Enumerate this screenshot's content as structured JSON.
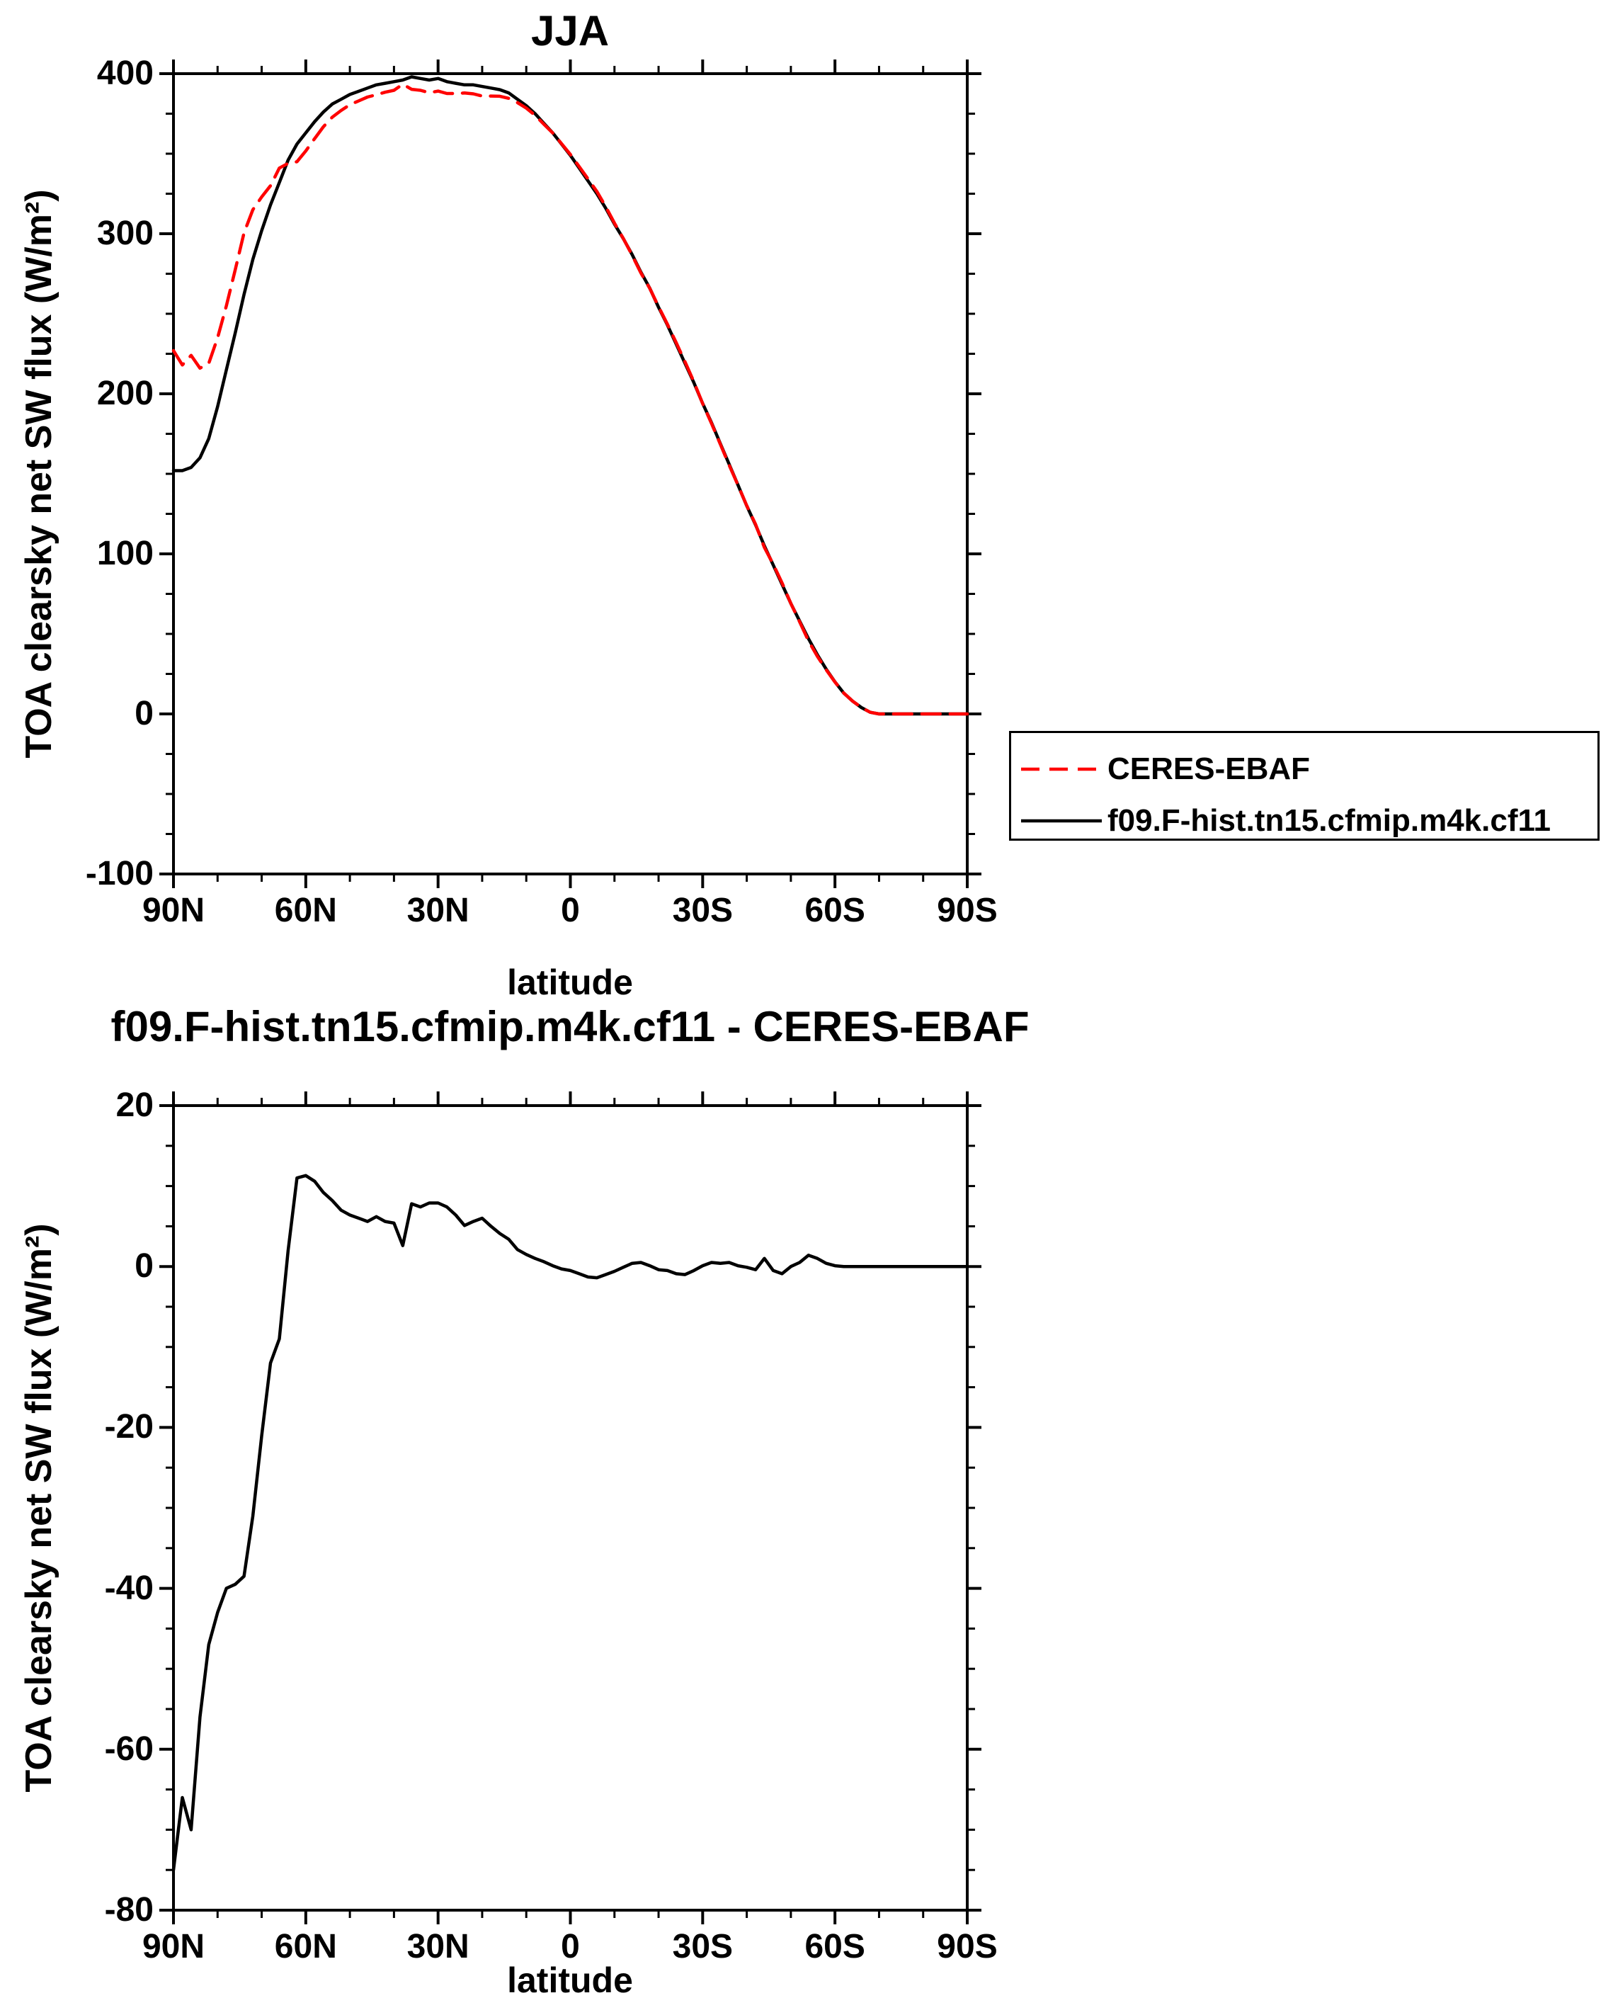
{
  "page": {
    "background": "#ffffff",
    "frame_color": "#000000"
  },
  "legend": {
    "items": [
      {
        "label": "CERES-EBAF",
        "color": "#ff0000",
        "style": "dashed"
      },
      {
        "label": "f09.F-hist.tn15.cfmip.m4k.cf11",
        "color": "#000000",
        "style": "solid"
      }
    ]
  },
  "chart_data": [
    {
      "type": "line",
      "title": "JJA",
      "xlabel": "latitude",
      "ylabel": "TOA clearsky net SW flux (W/m²)",
      "xlim_deg": [
        90,
        -90
      ],
      "ylim": [
        -100,
        400
      ],
      "grid": false,
      "legend_position": "outside-right-lower",
      "xticks": {
        "values": [
          90,
          60,
          30,
          0,
          -30,
          -60,
          -90
        ],
        "labels": [
          "90N",
          "60N",
          "30N",
          "0",
          "30S",
          "60S",
          "90S"
        ]
      },
      "yticks": {
        "values": [
          400,
          300,
          200,
          100,
          0,
          -100
        ],
        "labels": [
          "400",
          "300",
          "200",
          "100",
          "0",
          "-100"
        ]
      },
      "x": [
        90,
        88,
        86,
        84,
        82,
        80,
        78,
        76,
        74,
        72,
        70,
        68,
        66,
        64,
        62,
        60,
        58,
        56,
        54,
        52,
        50,
        48,
        46,
        44,
        42,
        40,
        38,
        36,
        34,
        32,
        30,
        28,
        26,
        24,
        22,
        20,
        18,
        16,
        14,
        12,
        10,
        8,
        6,
        4,
        2,
        0,
        -2,
        -4,
        -6,
        -8,
        -10,
        -12,
        -14,
        -16,
        -18,
        -20,
        -22,
        -24,
        -26,
        -28,
        -30,
        -32,
        -34,
        -36,
        -38,
        -40,
        -42,
        -44,
        -46,
        -48,
        -50,
        -52,
        -54,
        -56,
        -58,
        -60,
        -62,
        -64,
        -66,
        -68,
        -70,
        -72,
        -74,
        -76,
        -78,
        -80,
        -82,
        -84,
        -86,
        -88,
        -90
      ],
      "series": [
        {
          "name": "CERES-EBAF",
          "color": "#ff0000",
          "style": "dashed",
          "values": [
            227,
            218,
            224,
            216,
            219,
            235,
            255,
            277.5,
            300.5,
            315,
            323,
            330,
            341,
            344,
            345,
            351.7,
            359.4,
            366.8,
            372.8,
            377,
            380.6,
            383,
            385.4,
            386.8,
            388.4,
            389.6,
            393.4,
            390.2,
            389.6,
            388.1,
            389.1,
            387.6,
            387.6,
            387.9,
            387.4,
            386,
            386,
            385.9,
            384.6,
            381.9,
            378.5,
            374,
            368.4,
            362.9,
            356.3,
            349.5,
            341.9,
            334.3,
            326.4,
            317,
            306.6,
            297.1,
            286.6,
            275.5,
            265.9,
            254.4,
            243.5,
            231.9,
            220,
            207.5,
            193.9,
            181.5,
            168.6,
            155.5,
            142.9,
            130.1,
            118.4,
            104,
            93.5,
            81.9,
            69,
            57.5,
            45.6,
            36,
            27.6,
            19.9,
            13,
            8,
            4,
            1,
            0,
            0,
            0,
            0,
            0,
            0,
            0,
            0,
            0,
            0,
            0
          ]
        },
        {
          "name": "f09.F-hist.tn15.cfmip.m4k.cf11",
          "color": "#000000",
          "style": "solid",
          "values": [
            152,
            152,
            154,
            160,
            172,
            192,
            215,
            238,
            262,
            284,
            302,
            318,
            332,
            346,
            356,
            363,
            370,
            376,
            381,
            384,
            387,
            389,
            391,
            393,
            394,
            395,
            396,
            398,
            397,
            396,
            397,
            395,
            394,
            393,
            393,
            392,
            391,
            390,
            388,
            384,
            380,
            375,
            369,
            363,
            356,
            349,
            341,
            333,
            325,
            316,
            306,
            297,
            287,
            276,
            266,
            254,
            243,
            231,
            219,
            207,
            194,
            182,
            169,
            156,
            143,
            130,
            118,
            105,
            93,
            81,
            69,
            58,
            47,
            37,
            28,
            20,
            13,
            8,
            4,
            1,
            0,
            0,
            0,
            0,
            0,
            0,
            0,
            0,
            0,
            0,
            0
          ]
        }
      ]
    },
    {
      "type": "line",
      "title": "f09.F-hist.tn15.cfmip.m4k.cf11 - CERES-EBAF",
      "xlabel": "latitude",
      "ylabel": "TOA clearsky net SW flux (W/m²)",
      "xlim_deg": [
        90,
        -90
      ],
      "ylim": [
        -80,
        20
      ],
      "grid": false,
      "xticks": {
        "values": [
          90,
          60,
          30,
          0,
          -30,
          -60,
          -90
        ],
        "labels": [
          "90N",
          "60N",
          "30N",
          "0",
          "30S",
          "60S",
          "90S"
        ]
      },
      "yticks": {
        "values": [
          20,
          0,
          -20,
          -40,
          -60,
          -80
        ],
        "labels": [
          "20",
          "0",
          "-20",
          "-40",
          "-60",
          "-80"
        ]
      },
      "x": [
        90,
        88,
        86,
        84,
        82,
        80,
        78,
        76,
        74,
        72,
        70,
        68,
        66,
        64,
        62,
        60,
        58,
        56,
        54,
        52,
        50,
        48,
        46,
        44,
        42,
        40,
        38,
        36,
        34,
        32,
        30,
        28,
        26,
        24,
        22,
        20,
        18,
        16,
        14,
        12,
        10,
        8,
        6,
        4,
        2,
        0,
        -2,
        -4,
        -6,
        -8,
        -10,
        -12,
        -14,
        -16,
        -18,
        -20,
        -22,
        -24,
        -26,
        -28,
        -30,
        -32,
        -34,
        -36,
        -38,
        -40,
        -42,
        -44,
        -46,
        -48,
        -50,
        -52,
        -54,
        -56,
        -58,
        -60,
        -62,
        -64,
        -66,
        -68,
        -70,
        -72,
        -74,
        -76,
        -78,
        -80,
        -82,
        -84,
        -86,
        -88,
        -90
      ],
      "series": [
        {
          "name": "f09.F-hist.tn15.cfmip.m4k.cf11 - CERES-EBAF",
          "color": "#000000",
          "style": "solid",
          "values": [
            -75,
            -66,
            -70,
            -56,
            -47,
            -43,
            -40,
            -39.5,
            -38.5,
            -31,
            -21,
            -12,
            -9,
            2,
            11,
            11.3,
            10.6,
            9.2,
            8.2,
            7,
            6.4,
            6,
            5.6,
            6.2,
            5.6,
            5.4,
            2.6,
            7.8,
            7.4,
            7.9,
            7.9,
            7.4,
            6.4,
            5.1,
            5.6,
            6,
            5,
            4.1,
            3.4,
            2.1,
            1.5,
            1,
            0.6,
            0.1,
            -0.3,
            -0.5,
            -0.9,
            -1.3,
            -1.4,
            -1,
            -0.6,
            -0.1,
            0.4,
            0.5,
            0.1,
            -0.4,
            -0.5,
            -0.9,
            -1,
            -0.5,
            0.1,
            0.5,
            0.4,
            0.5,
            0.1,
            -0.1,
            -0.4,
            1,
            -0.5,
            -0.9,
            0,
            0.5,
            1.4,
            1,
            0.4,
            0.1,
            0,
            0,
            0,
            0,
            0,
            0,
            0,
            0,
            0,
            0,
            0,
            0,
            0,
            0,
            0
          ]
        }
      ]
    }
  ]
}
